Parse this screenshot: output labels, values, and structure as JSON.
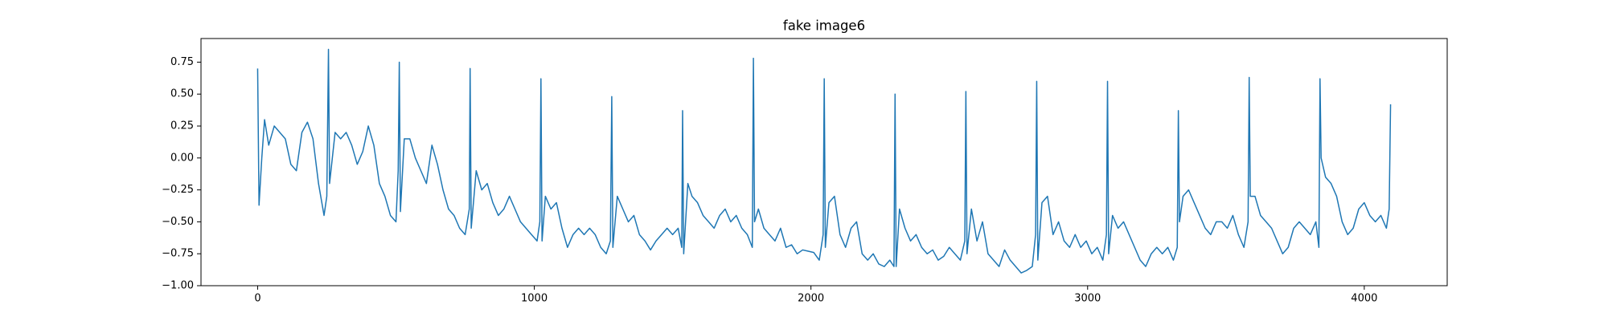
{
  "chart_data": {
    "type": "line",
    "title": "fake image6",
    "color": "#1f77b4",
    "grid": false,
    "xlim": [
      -204.75,
      4299.75
    ],
    "ylim": [
      -1.0,
      0.935
    ],
    "xticks": [
      0,
      1000,
      2000,
      3000,
      4000
    ],
    "yticks": [
      {
        "value": -1.0,
        "label": "−1.00"
      },
      {
        "value": -0.75,
        "label": "−0.75"
      },
      {
        "value": -0.5,
        "label": "−0.50"
      },
      {
        "value": -0.25,
        "label": "−0.25"
      },
      {
        "value": 0,
        "label": "0.00"
      },
      {
        "value": 0.25,
        "label": "0.25"
      },
      {
        "value": 0.5,
        "label": "0.50"
      },
      {
        "value": 0.75,
        "label": "0.75"
      }
    ],
    "x": [
      0,
      5,
      15,
      25,
      40,
      60,
      80,
      100,
      120,
      140,
      160,
      180,
      200,
      220,
      240,
      250,
      256,
      260,
      280,
      300,
      320,
      340,
      360,
      380,
      400,
      420,
      440,
      460,
      480,
      500,
      508,
      512,
      516,
      530,
      550,
      570,
      590,
      610,
      630,
      650,
      670,
      690,
      710,
      730,
      750,
      765,
      768,
      772,
      790,
      810,
      830,
      850,
      870,
      890,
      910,
      930,
      950,
      970,
      990,
      1010,
      1020,
      1024,
      1028,
      1040,
      1060,
      1080,
      1100,
      1120,
      1140,
      1160,
      1180,
      1200,
      1220,
      1240,
      1260,
      1275,
      1280,
      1284,
      1300,
      1320,
      1340,
      1360,
      1380,
      1400,
      1420,
      1440,
      1460,
      1480,
      1500,
      1520,
      1533,
      1536,
      1540,
      1555,
      1570,
      1590,
      1610,
      1630,
      1650,
      1670,
      1690,
      1710,
      1730,
      1750,
      1770,
      1788,
      1792,
      1796,
      1810,
      1830,
      1850,
      1870,
      1890,
      1910,
      1930,
      1950,
      1970,
      1990,
      2010,
      2030,
      2044,
      2048,
      2052,
      2065,
      2085,
      2105,
      2125,
      2145,
      2165,
      2185,
      2205,
      2225,
      2245,
      2265,
      2285,
      2300,
      2304,
      2308,
      2320,
      2340,
      2360,
      2380,
      2400,
      2420,
      2440,
      2460,
      2480,
      2500,
      2520,
      2540,
      2556,
      2560,
      2564,
      2580,
      2600,
      2620,
      2640,
      2660,
      2680,
      2700,
      2720,
      2740,
      2760,
      2780,
      2800,
      2812,
      2816,
      2820,
      2835,
      2855,
      2875,
      2895,
      2915,
      2935,
      2955,
      2975,
      2995,
      3015,
      3035,
      3055,
      3068,
      3072,
      3076,
      3090,
      3110,
      3130,
      3150,
      3170,
      3190,
      3210,
      3230,
      3250,
      3270,
      3290,
      3310,
      3324,
      3328,
      3332,
      3345,
      3365,
      3385,
      3405,
      3425,
      3445,
      3465,
      3485,
      3505,
      3525,
      3545,
      3565,
      3580,
      3584,
      3588,
      3605,
      3625,
      3645,
      3665,
      3685,
      3705,
      3725,
      3745,
      3765,
      3785,
      3805,
      3825,
      3836,
      3840,
      3844,
      3860,
      3880,
      3900,
      3920,
      3940,
      3960,
      3980,
      4000,
      4020,
      4040,
      4060,
      4080,
      4090,
      4095
    ],
    "values": [
      0.7,
      -0.37,
      0.0,
      0.3,
      0.1,
      0.25,
      0.2,
      0.15,
      -0.05,
      -0.1,
      0.2,
      0.28,
      0.15,
      -0.2,
      -0.45,
      -0.3,
      0.85,
      -0.2,
      0.2,
      0.15,
      0.2,
      0.1,
      -0.05,
      0.05,
      0.25,
      0.1,
      -0.2,
      -0.3,
      -0.45,
      -0.5,
      -0.1,
      0.75,
      -0.42,
      0.15,
      0.15,
      0.0,
      -0.1,
      -0.2,
      0.1,
      -0.05,
      -0.25,
      -0.4,
      -0.45,
      -0.55,
      -0.6,
      -0.4,
      0.7,
      -0.55,
      -0.1,
      -0.25,
      -0.2,
      -0.35,
      -0.45,
      -0.4,
      -0.3,
      -0.4,
      -0.5,
      -0.55,
      -0.6,
      -0.65,
      -0.5,
      0.62,
      -0.65,
      -0.3,
      -0.4,
      -0.35,
      -0.55,
      -0.7,
      -0.6,
      -0.55,
      -0.6,
      -0.55,
      -0.6,
      -0.7,
      -0.75,
      -0.65,
      0.48,
      -0.7,
      -0.3,
      -0.4,
      -0.5,
      -0.45,
      -0.6,
      -0.65,
      -0.72,
      -0.65,
      -0.6,
      -0.55,
      -0.6,
      -0.55,
      -0.7,
      0.37,
      -0.75,
      -0.2,
      -0.3,
      -0.35,
      -0.45,
      -0.5,
      -0.55,
      -0.45,
      -0.4,
      -0.5,
      -0.45,
      -0.55,
      -0.6,
      -0.7,
      0.78,
      -0.5,
      -0.4,
      -0.55,
      -0.6,
      -0.65,
      -0.55,
      -0.7,
      -0.68,
      -0.75,
      -0.72,
      -0.73,
      -0.74,
      -0.8,
      -0.6,
      0.62,
      -0.7,
      -0.35,
      -0.3,
      -0.6,
      -0.7,
      -0.55,
      -0.5,
      -0.75,
      -0.8,
      -0.75,
      -0.83,
      -0.85,
      -0.8,
      -0.85,
      0.5,
      -0.85,
      -0.4,
      -0.55,
      -0.65,
      -0.6,
      -0.7,
      -0.75,
      -0.72,
      -0.8,
      -0.77,
      -0.7,
      -0.75,
      -0.8,
      -0.65,
      0.52,
      -0.75,
      -0.4,
      -0.65,
      -0.5,
      -0.75,
      -0.8,
      -0.85,
      -0.72,
      -0.8,
      -0.85,
      -0.9,
      -0.88,
      -0.85,
      -0.6,
      0.6,
      -0.8,
      -0.35,
      -0.3,
      -0.6,
      -0.5,
      -0.65,
      -0.7,
      -0.6,
      -0.7,
      -0.65,
      -0.75,
      -0.7,
      -0.8,
      -0.6,
      0.6,
      -0.75,
      -0.45,
      -0.55,
      -0.5,
      -0.6,
      -0.7,
      -0.8,
      -0.85,
      -0.75,
      -0.7,
      -0.75,
      -0.7,
      -0.8,
      -0.7,
      0.37,
      -0.5,
      -0.3,
      -0.25,
      -0.35,
      -0.45,
      -0.55,
      -0.6,
      -0.5,
      -0.5,
      -0.55,
      -0.45,
      -0.6,
      -0.7,
      -0.5,
      0.63,
      -0.3,
      -0.3,
      -0.45,
      -0.5,
      -0.55,
      -0.65,
      -0.75,
      -0.7,
      -0.55,
      -0.5,
      -0.55,
      -0.6,
      -0.5,
      -0.7,
      0.62,
      0.0,
      -0.15,
      -0.2,
      -0.3,
      -0.5,
      -0.6,
      -0.55,
      -0.4,
      -0.35,
      -0.45,
      -0.5,
      -0.45,
      -0.55,
      -0.4,
      0.42
    ]
  }
}
